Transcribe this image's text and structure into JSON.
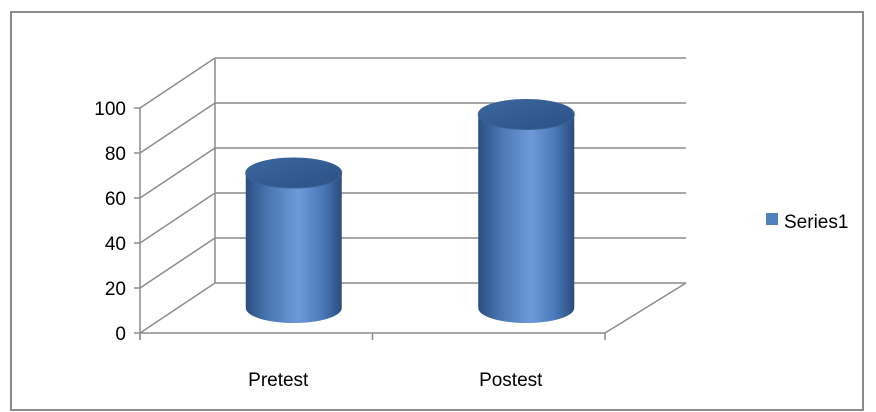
{
  "chart_data": {
    "type": "bar",
    "style": "3d-cylinder",
    "categories": [
      "Pretest",
      "Postest"
    ],
    "series": [
      {
        "name": "Series1",
        "values": [
          60,
          86
        ],
        "color": "#4F81BD"
      }
    ],
    "ylim": [
      0,
      100
    ],
    "yticks": [
      0,
      20,
      40,
      60,
      80,
      100
    ],
    "grid": true,
    "legend": "right",
    "title": "",
    "xlabel": "",
    "ylabel": ""
  },
  "colors": {
    "series_fill": "#4F81BD",
    "gridline": "#8C8C8C",
    "frame_border": "#8C8C8C"
  }
}
